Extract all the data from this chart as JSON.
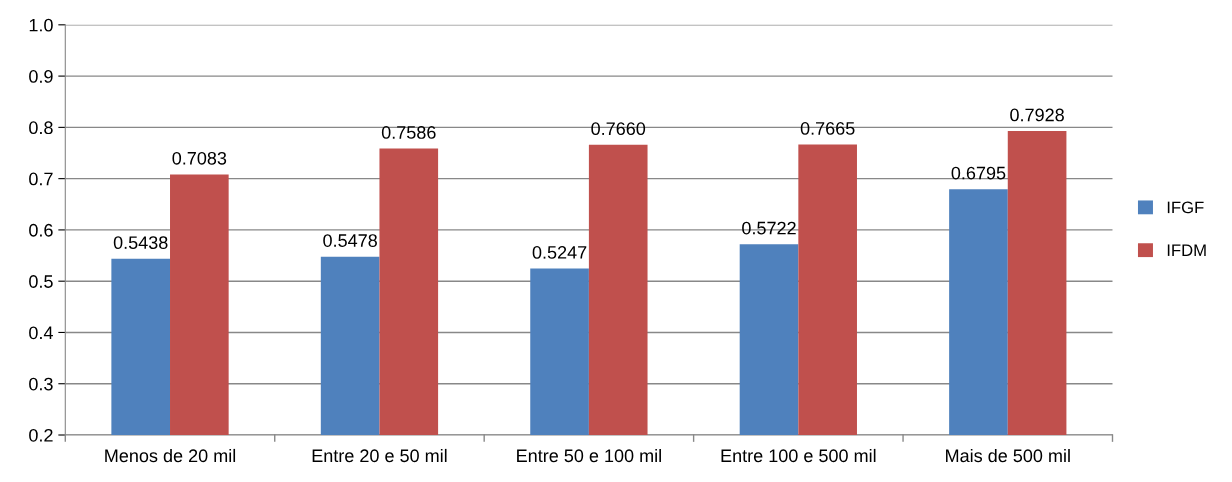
{
  "chart_data": {
    "type": "bar",
    "categories": [
      "Menos de 20 mil",
      "Entre 20 e 50 mil",
      "Entre 50 e 100 mil",
      "Entre 100 e 500 mil",
      "Mais de 500 mil"
    ],
    "series": [
      {
        "name": "IFGF",
        "color": "#4f81bd",
        "values": [
          0.5438,
          0.5478,
          0.5247,
          0.5722,
          0.6795
        ],
        "value_labels": [
          "0.5438",
          "0.5478",
          "0.5247",
          "0.5722",
          "0.6795"
        ]
      },
      {
        "name": "IFDM",
        "color": "#c0504d",
        "values": [
          0.7083,
          0.7586,
          0.766,
          0.7665,
          0.7928
        ],
        "value_labels": [
          "0.7083",
          "0.7586",
          "0.7660",
          "0.7665",
          "0.7928"
        ]
      }
    ],
    "ylim": [
      0.2,
      1.0
    ],
    "yticks": [
      {
        "value": 0.2,
        "label": "0.2"
      },
      {
        "value": 0.3,
        "label": "0.3"
      },
      {
        "value": 0.4,
        "label": "0.4"
      },
      {
        "value": 0.5,
        "label": "0.5"
      },
      {
        "value": 0.6,
        "label": "0.6"
      },
      {
        "value": 0.7,
        "label": "0.7"
      },
      {
        "value": 0.8,
        "label": "0.8"
      },
      {
        "value": 0.9,
        "label": "0.9"
      },
      {
        "value": 1.0,
        "label": "1.0"
      }
    ],
    "grid": "y",
    "legend": "right"
  }
}
